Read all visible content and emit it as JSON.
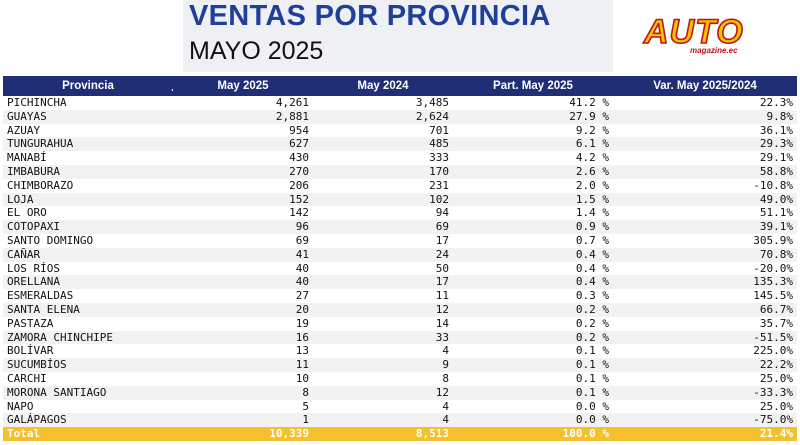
{
  "header": {
    "title": "VENTAS POR PROVINCIA",
    "subtitle": "MAYO 2025",
    "logo_text": "AUTO",
    "logo_sub": "magazine.ec"
  },
  "table": {
    "columns": [
      "Provincia",
      "May 2025",
      "May 2024",
      "Part. May 2025",
      "Var. May 2025/2024"
    ],
    "sorted_column": "May 2025",
    "rows": [
      {
        "provincia": "PICHINCHA",
        "may2025": "4,261",
        "may2024": "3,485",
        "part": "41.2 %",
        "var": "22.3%"
      },
      {
        "provincia": "GUAYAS",
        "may2025": "2,881",
        "may2024": "2,624",
        "part": "27.9 %",
        "var": "9.8%"
      },
      {
        "provincia": "AZUAY",
        "may2025": "954",
        "may2024": "701",
        "part": "9.2 %",
        "var": "36.1%"
      },
      {
        "provincia": "TUNGURAHUA",
        "may2025": "627",
        "may2024": "485",
        "part": "6.1 %",
        "var": "29.3%"
      },
      {
        "provincia": "MANABÍ",
        "may2025": "430",
        "may2024": "333",
        "part": "4.2 %",
        "var": "29.1%"
      },
      {
        "provincia": "IMBABURA",
        "may2025": "270",
        "may2024": "170",
        "part": "2.6 %",
        "var": "58.8%"
      },
      {
        "provincia": "CHIMBORAZO",
        "may2025": "206",
        "may2024": "231",
        "part": "2.0 %",
        "var": "-10.8%"
      },
      {
        "provincia": "LOJA",
        "may2025": "152",
        "may2024": "102",
        "part": "1.5 %",
        "var": "49.0%"
      },
      {
        "provincia": "EL ORO",
        "may2025": "142",
        "may2024": "94",
        "part": "1.4 %",
        "var": "51.1%"
      },
      {
        "provincia": "COTOPAXI",
        "may2025": "96",
        "may2024": "69",
        "part": "0.9 %",
        "var": "39.1%"
      },
      {
        "provincia": "SANTO DOMINGO",
        "may2025": "69",
        "may2024": "17",
        "part": "0.7 %",
        "var": "305.9%"
      },
      {
        "provincia": "CAÑAR",
        "may2025": "41",
        "may2024": "24",
        "part": "0.4 %",
        "var": "70.8%"
      },
      {
        "provincia": "LOS RÍOS",
        "may2025": "40",
        "may2024": "50",
        "part": "0.4 %",
        "var": "-20.0%"
      },
      {
        "provincia": "ORELLANA",
        "may2025": "40",
        "may2024": "17",
        "part": "0.4 %",
        "var": "135.3%"
      },
      {
        "provincia": "ESMERALDAS",
        "may2025": "27",
        "may2024": "11",
        "part": "0.3 %",
        "var": "145.5%"
      },
      {
        "provincia": "SANTA ELENA",
        "may2025": "20",
        "may2024": "12",
        "part": "0.2 %",
        "var": "66.7%"
      },
      {
        "provincia": "PASTAZA",
        "may2025": "19",
        "may2024": "14",
        "part": "0.2 %",
        "var": "35.7%"
      },
      {
        "provincia": "ZAMORA CHINCHIPE",
        "may2025": "16",
        "may2024": "33",
        "part": "0.2 %",
        "var": "-51.5%"
      },
      {
        "provincia": "BOLÍVAR",
        "may2025": "13",
        "may2024": "4",
        "part": "0.1 %",
        "var": "225.0%"
      },
      {
        "provincia": "SUCUMBÍOS",
        "may2025": "11",
        "may2024": "9",
        "part": "0.1 %",
        "var": "22.2%"
      },
      {
        "provincia": "CARCHI",
        "may2025": "10",
        "may2024": "8",
        "part": "0.1 %",
        "var": "25.0%"
      },
      {
        "provincia": "MORONA SANTIAGO",
        "may2025": "8",
        "may2024": "12",
        "part": "0.1 %",
        "var": "-33.3%"
      },
      {
        "provincia": "NAPO",
        "may2025": "5",
        "may2024": "4",
        "part": "0.0 %",
        "var": "25.0%"
      },
      {
        "provincia": "GALÁPAGOS",
        "may2025": "1",
        "may2024": "4",
        "part": "0.0 %",
        "var": "-75.0%"
      }
    ],
    "total": {
      "label": "Total",
      "may2025": "10,339",
      "may2024": "8,513",
      "part": "100.0 %",
      "var": "21.4%"
    }
  },
  "colors": {
    "title": "#1f3f9a",
    "header_bg": "#1f2e75",
    "total_bg": "#f5c02b",
    "logo_fill": "#f2c200",
    "logo_outline": "#c4121a"
  }
}
